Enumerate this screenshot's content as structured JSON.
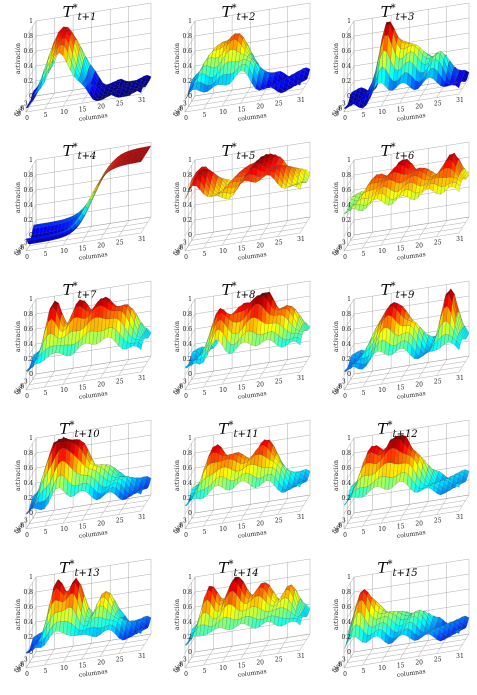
{
  "chart_data": [
    {
      "type": "surface",
      "title": "T",
      "subscript": "t+1",
      "zlabel": "activación",
      "xlabel": "columnas",
      "ylabel": "filas",
      "xticks": [
        "0",
        "5",
        "10",
        "15",
        "20",
        "25",
        "31"
      ],
      "yticks": [
        "3",
        "6",
        "9"
      ],
      "zticks": [
        "0",
        "0.2",
        "0.4",
        "0.6",
        "0.8",
        "1"
      ],
      "zlim": [
        0,
        1
      ],
      "xlim": [
        0,
        31
      ],
      "ylim": [
        0,
        9
      ],
      "peaks": [
        [
          9,
          4,
          0.95,
          4,
          6
        ]
      ],
      "base": 0.0
    },
    {
      "type": "surface",
      "title": "T",
      "subscript": "t+2",
      "zlabel": "activación",
      "xlabel": "columnas",
      "ylabel": "filas",
      "xticks": [
        "0",
        "5",
        "10",
        "15",
        "20",
        "25",
        "31"
      ],
      "yticks": [
        "3",
        "6",
        "9"
      ],
      "zticks": [
        "0",
        "0.2",
        "0.4",
        "0.6",
        "0.8",
        "1"
      ],
      "zlim": [
        0,
        1
      ],
      "xlim": [
        0,
        31
      ],
      "ylim": [
        0,
        9
      ],
      "peaks": [
        [
          4,
          4,
          0.45,
          3,
          4
        ],
        [
          10,
          3,
          0.65,
          3,
          3
        ],
        [
          15,
          5,
          0.55,
          3,
          4
        ]
      ],
      "base": 0.1
    },
    {
      "type": "surface",
      "title": "T",
      "subscript": "t+3",
      "zlabel": "activación",
      "xlabel": "columnas",
      "ylabel": "filas",
      "xticks": [
        "0",
        "5",
        "10",
        "15",
        "20",
        "25",
        "31"
      ],
      "yticks": [
        "3",
        "6",
        "9"
      ],
      "zticks": [
        "0",
        "0.2",
        "0.4",
        "0.6",
        "0.8",
        "1"
      ],
      "zlim": [
        0,
        1
      ],
      "xlim": [
        0,
        31
      ],
      "ylim": [
        0,
        9
      ],
      "peaks": [
        [
          10,
          4,
          0.95,
          2,
          3
        ],
        [
          16,
          4,
          0.7,
          3,
          3
        ],
        [
          24,
          5,
          0.5,
          3,
          3
        ]
      ],
      "base": 0.05
    },
    {
      "type": "surface",
      "title": "T",
      "subscript": "t+4",
      "zlabel": "activación",
      "xlabel": "columnas",
      "ylabel": "filas",
      "xticks": [
        "0",
        "5",
        "10",
        "15",
        "20",
        "25",
        "31"
      ],
      "yticks": [
        "3",
        "6",
        "9"
      ],
      "zticks": [
        "0",
        "0.2",
        "0.4",
        "0.6",
        "0.8",
        "1"
      ],
      "zlim": [
        0,
        1
      ],
      "xlim": [
        0,
        31
      ],
      "ylim": [
        0,
        9
      ],
      "ramp": true,
      "base": 0.1
    },
    {
      "type": "surface",
      "title": "T",
      "subscript": "t+5",
      "zlabel": "activación",
      "xlabel": "columnas",
      "ylabel": "filas",
      "xticks": [
        "0",
        "5",
        "10",
        "15",
        "20",
        "25",
        "31"
      ],
      "yticks": [
        "3",
        "6",
        "9"
      ],
      "zticks": [
        "0",
        "0.2",
        "0.4",
        "0.6",
        "0.8",
        "1"
      ],
      "zlim": [
        0,
        1
      ],
      "xlim": [
        0,
        31
      ],
      "ylim": [
        0,
        9
      ],
      "peaks": [
        [
          3,
          4,
          0.95,
          3,
          6
        ],
        [
          20,
          4,
          0.95,
          6,
          6
        ],
        [
          12,
          5,
          0.55,
          3,
          3
        ]
      ],
      "base": 0.5
    },
    {
      "type": "surface",
      "title": "T",
      "subscript": "t+6",
      "zlabel": "activación",
      "xlabel": "columnas",
      "ylabel": "filas",
      "xticks": [
        "0",
        "5",
        "10",
        "15",
        "20",
        "25",
        "31"
      ],
      "yticks": [
        "3",
        "6",
        "9"
      ],
      "zticks": [
        "0",
        "0.2",
        "0.4",
        "0.6",
        "0.8",
        "1"
      ],
      "zlim": [
        0,
        1
      ],
      "xlim": [
        0,
        31
      ],
      "ylim": [
        0,
        9
      ],
      "peaks": [
        [
          8,
          4,
          0.8,
          3,
          3
        ],
        [
          15,
          3,
          0.9,
          3,
          3
        ],
        [
          22,
          5,
          0.75,
          3,
          3
        ],
        [
          28,
          4,
          0.9,
          2,
          3
        ]
      ],
      "base": 0.5
    },
    {
      "type": "surface",
      "title": "T",
      "subscript": "t+7",
      "zlabel": "activación",
      "xlabel": "columnas",
      "ylabel": "filas",
      "xticks": [
        "0",
        "5",
        "10",
        "15",
        "20",
        "25",
        "31"
      ],
      "yticks": [
        "3",
        "6",
        "9"
      ],
      "zticks": [
        "0",
        "0.2",
        "0.4",
        "0.6",
        "0.8",
        "1"
      ],
      "zlim": [
        0,
        1
      ],
      "xlim": [
        0,
        31
      ],
      "ylim": [
        0,
        9
      ],
      "peaks": [
        [
          6,
          4,
          0.95,
          2,
          3
        ],
        [
          13,
          4,
          0.9,
          3,
          3
        ],
        [
          20,
          5,
          0.85,
          3,
          3
        ],
        [
          26,
          4,
          0.7,
          3,
          3
        ]
      ],
      "base": 0.25
    },
    {
      "type": "surface",
      "title": "T",
      "subscript": "t+8",
      "zlabel": "activación",
      "xlabel": "columnas",
      "ylabel": "filas",
      "xticks": [
        "0",
        "5",
        "10",
        "15",
        "20",
        "25",
        "31"
      ],
      "yticks": [
        "3",
        "6",
        "9"
      ],
      "zticks": [
        "0",
        "0.2",
        "0.4",
        "0.6",
        "0.8",
        "1"
      ],
      "zlim": [
        0,
        1
      ],
      "xlim": [
        0,
        31
      ],
      "ylim": [
        0,
        9
      ],
      "peaks": [
        [
          8,
          5,
          0.9,
          2,
          3
        ],
        [
          14,
          4,
          0.8,
          3,
          3
        ],
        [
          20,
          4,
          0.95,
          3,
          3
        ],
        [
          27,
          4,
          0.7,
          3,
          3
        ]
      ],
      "base": 0.3
    },
    {
      "type": "surface",
      "title": "T",
      "subscript": "t+9",
      "zlabel": "activación",
      "xlabel": "columnas",
      "ylabel": "filas",
      "xticks": [
        "0",
        "5",
        "10",
        "15",
        "20",
        "25",
        "31"
      ],
      "yticks": [
        "3",
        "6",
        "9"
      ],
      "zticks": [
        "0",
        "0.2",
        "0.4",
        "0.6",
        "0.8",
        "1"
      ],
      "zlim": [
        0,
        1
      ],
      "xlim": [
        0,
        31
      ],
      "ylim": [
        0,
        9
      ],
      "peaks": [
        [
          10,
          4,
          0.85,
          3,
          3
        ],
        [
          16,
          4,
          0.7,
          3,
          3
        ],
        [
          27,
          4,
          1.0,
          2,
          3
        ]
      ],
      "base": 0.25
    },
    {
      "type": "surface",
      "title": "T",
      "subscript": "t+10",
      "zlabel": "activación",
      "xlabel": "columnas",
      "ylabel": "filas",
      "xticks": [
        "0",
        "5",
        "10",
        "15",
        "20",
        "25",
        "31"
      ],
      "yticks": [
        "3",
        "6",
        "9"
      ],
      "zticks": [
        "0",
        "0.2",
        "0.4",
        "0.6",
        "0.8",
        "1"
      ],
      "zlim": [
        0,
        1
      ],
      "xlim": [
        0,
        31
      ],
      "ylim": [
        0,
        9
      ],
      "peaks": [
        [
          4,
          4,
          0.6,
          2,
          2
        ],
        [
          8,
          4,
          0.95,
          2,
          3
        ],
        [
          13,
          4,
          0.85,
          3,
          3
        ],
        [
          21,
          4,
          0.5,
          4,
          3
        ]
      ],
      "base": 0.2
    },
    {
      "type": "surface",
      "title": "T",
      "subscript": "t+11",
      "zlabel": "activación",
      "xlabel": "columnas",
      "ylabel": "filas",
      "xticks": [
        "0",
        "5",
        "10",
        "15",
        "20",
        "25",
        "31"
      ],
      "yticks": [
        "3",
        "6",
        "9"
      ],
      "zticks": [
        "0",
        "0.2",
        "0.4",
        "0.6",
        "0.8",
        "1"
      ],
      "zlim": [
        0,
        1
      ],
      "xlim": [
        0,
        31
      ],
      "ylim": [
        0,
        9
      ],
      "peaks": [
        [
          7,
          4,
          0.9,
          3,
          3
        ],
        [
          14,
          5,
          0.7,
          3,
          3
        ],
        [
          21,
          4,
          0.85,
          3,
          3
        ]
      ],
      "base": 0.3
    },
    {
      "type": "surface",
      "title": "T",
      "subscript": "t+12",
      "zlabel": "activación",
      "xlabel": "columnas",
      "ylabel": "filas",
      "xticks": [
        "0",
        "5",
        "10",
        "15",
        "20",
        "25",
        "31"
      ],
      "yticks": [
        "3",
        "6",
        "9"
      ],
      "zticks": [
        "0",
        "0.2",
        "0.4",
        "0.6",
        "0.8",
        "1"
      ],
      "zlim": [
        0,
        1
      ],
      "xlim": [
        0,
        31
      ],
      "ylim": [
        0,
        9
      ],
      "peaks": [
        [
          6,
          4,
          0.85,
          3,
          3
        ],
        [
          13,
          4,
          0.95,
          3,
          3
        ],
        [
          18,
          4,
          0.6,
          3,
          3
        ]
      ],
      "base": 0.3
    },
    {
      "type": "surface",
      "title": "T",
      "subscript": "t+13",
      "zlabel": "activación",
      "xlabel": "columnas",
      "ylabel": "filas",
      "xticks": [
        "0",
        "5",
        "10",
        "15",
        "20",
        "25",
        "31"
      ],
      "yticks": [
        "3",
        "6",
        "9"
      ],
      "zticks": [
        "0",
        "0.2",
        "0.4",
        "0.6",
        "0.8",
        "1"
      ],
      "zlim": [
        0,
        1
      ],
      "xlim": [
        0,
        31
      ],
      "ylim": [
        0,
        9
      ],
      "peaks": [
        [
          7,
          4,
          0.95,
          2,
          3
        ],
        [
          12,
          4,
          0.9,
          2,
          3
        ],
        [
          20,
          4,
          0.7,
          3,
          3
        ]
      ],
      "base": 0.2
    },
    {
      "type": "surface",
      "title": "T",
      "subscript": "t+14",
      "zlabel": "activación",
      "xlabel": "columnas",
      "ylabel": "filas",
      "xticks": [
        "0",
        "5",
        "10",
        "15",
        "20",
        "25",
        "31"
      ],
      "yticks": [
        "3",
        "6",
        "9"
      ],
      "zticks": [
        "0",
        "0.2",
        "0.4",
        "0.6",
        "0.8",
        "1"
      ],
      "zlim": [
        0,
        1
      ],
      "xlim": [
        0,
        31
      ],
      "ylim": [
        0,
        9
      ],
      "peaks": [
        [
          5,
          4,
          0.85,
          2,
          3
        ],
        [
          12,
          4,
          0.95,
          3,
          3
        ],
        [
          20,
          4,
          0.8,
          3,
          3
        ],
        [
          27,
          4,
          0.7,
          2,
          3
        ]
      ],
      "base": 0.3
    },
    {
      "type": "surface",
      "title": "T",
      "subscript": "t+15",
      "zlabel": "activación",
      "xlabel": "columnas",
      "ylabel": "filas",
      "xticks": [
        "0",
        "5",
        "10",
        "15",
        "20",
        "25",
        "31"
      ],
      "yticks": [
        "3",
        "6",
        "9"
      ],
      "zticks": [
        "0",
        "0.2",
        "0.4",
        "0.6",
        "0.8",
        "1"
      ],
      "zlim": [
        0,
        1
      ],
      "xlim": [
        0,
        31
      ],
      "ylim": [
        0,
        9
      ],
      "peaks": [
        [
          3,
          4,
          0.8,
          2,
          3
        ],
        [
          8,
          4,
          0.6,
          3,
          3
        ],
        [
          17,
          4,
          0.5,
          4,
          3
        ]
      ],
      "base": 0.2
    }
  ]
}
